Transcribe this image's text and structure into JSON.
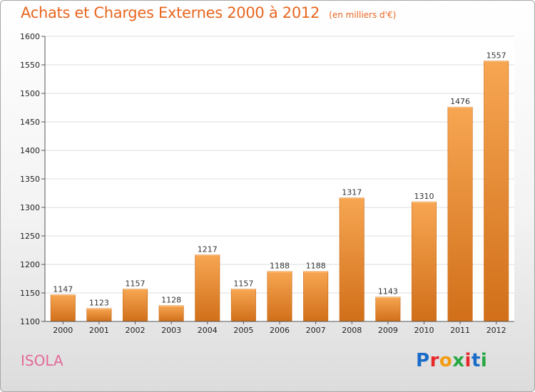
{
  "chart_data": {
    "type": "bar",
    "title": "Achats et Charges Externes 2000 à 2012",
    "unit_note": "(en milliers d'€)",
    "categories": [
      "2000",
      "2001",
      "2002",
      "2003",
      "2004",
      "2005",
      "2006",
      "2007",
      "2008",
      "2009",
      "2010",
      "2011",
      "2012"
    ],
    "values": [
      1147,
      1123,
      1157,
      1128,
      1217,
      1157,
      1188,
      1188,
      1317,
      1143,
      1310,
      1476,
      1557
    ],
    "ylim": [
      1100,
      1600
    ],
    "yticks": [
      1100,
      1150,
      1200,
      1250,
      1300,
      1350,
      1400,
      1450,
      1500,
      1550,
      1600
    ],
    "grid": true,
    "bar_color_light": "#f7a652",
    "bar_color_dark": "#d16f1a",
    "xlabel": "",
    "ylabel": ""
  },
  "footer": {
    "region": "ISOLA",
    "logo_text": "Proxiti",
    "logo_colors": [
      "#1a6cc8",
      "#e8292a",
      "#f39c12",
      "#27a845",
      "#e8292a",
      "#1a6cc8",
      "#27a845"
    ]
  }
}
